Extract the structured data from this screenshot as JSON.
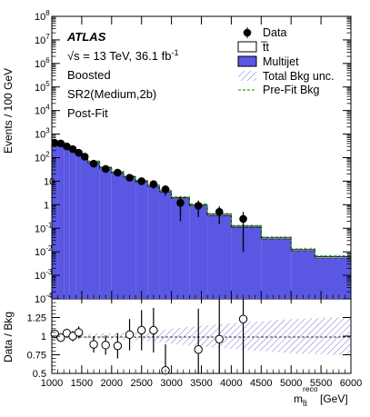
{
  "chart_data": {
    "type": "histogram-with-ratio",
    "annotations": {
      "experiment": "ATLAS",
      "energy_prefix": "√s = 13 TeV, 36.1 fb",
      "lumi_exponent": "-1",
      "selection": "Boosted",
      "region": "SR2(Medium,2b)",
      "fit_state": "Post-Fit"
    },
    "legend": {
      "position": "top-right",
      "entries": [
        {
          "name": "Data",
          "style": "marker",
          "color": "#000000"
        },
        {
          "name": "t̅t",
          "style": "box",
          "color": "#ffffff"
        },
        {
          "name": "Multijet",
          "style": "box",
          "color": "#5a57e2"
        },
        {
          "name": "Total Bkg unc.",
          "style": "hatch",
          "color": "#7f80d8"
        },
        {
          "name": "Pre-Fit Bkg",
          "style": "dashed",
          "color": "#2aa62a"
        }
      ]
    },
    "x_axis": {
      "label": "m",
      "label_sub": "t̅t",
      "label_sup": "reco",
      "label_unit": "[GeV]",
      "range": [
        1000,
        6000
      ],
      "ticks": [
        1000,
        1500,
        2000,
        2500,
        3000,
        3500,
        4000,
        4500,
        5000,
        5500,
        6000
      ]
    },
    "top_panel": {
      "ylabel": "Events / 100 GeV",
      "scale": "log",
      "ylim": [
        0.0001,
        100000000
      ],
      "yticks": [
        {
          "v": 0.0001,
          "base": "10",
          "exp": "-4"
        },
        {
          "v": 0.001,
          "base": "10",
          "exp": "-3"
        },
        {
          "v": 0.01,
          "base": "10",
          "exp": "-2"
        },
        {
          "v": 0.1,
          "base": "10",
          "exp": "-1"
        },
        {
          "v": 1,
          "base": "1",
          "exp": ""
        },
        {
          "v": 10,
          "base": "10",
          "exp": ""
        },
        {
          "v": 100,
          "base": "10",
          "exp": "2"
        },
        {
          "v": 1000,
          "base": "10",
          "exp": "3"
        },
        {
          "v": 10000,
          "base": "10",
          "exp": "4"
        },
        {
          "v": 100000,
          "base": "10",
          "exp": "5"
        },
        {
          "v": 1000000,
          "base": "10",
          "exp": "6"
        },
        {
          "v": 10000000,
          "base": "10",
          "exp": "7"
        },
        {
          "v": 100000000,
          "base": "10",
          "exp": "8"
        }
      ]
    },
    "ratio_panel": {
      "ylabel": "Data / Bkg",
      "ylim": [
        0.5,
        1.5
      ],
      "yticks": [
        0.5,
        0.75,
        1,
        1.25
      ]
    },
    "background_bins": [
      {
        "lo": 1000,
        "hi": 1100,
        "multijet": 380,
        "ttbar": 35
      },
      {
        "lo": 1100,
        "hi": 1200,
        "multijet": 320,
        "ttbar": 30
      },
      {
        "lo": 1200,
        "hi": 1300,
        "multijet": 250,
        "ttbar": 25
      },
      {
        "lo": 1300,
        "hi": 1400,
        "multijet": 190,
        "ttbar": 20
      },
      {
        "lo": 1400,
        "hi": 1500,
        "multijet": 140,
        "ttbar": 15
      },
      {
        "lo": 1500,
        "hi": 1600,
        "multijet": 100,
        "ttbar": 11
      },
      {
        "lo": 1600,
        "hi": 1800,
        "multijet": 60,
        "ttbar": 7
      },
      {
        "lo": 1800,
        "hi": 2000,
        "multijet": 33,
        "ttbar": 4
      },
      {
        "lo": 2000,
        "hi": 2200,
        "multijet": 22,
        "ttbar": 2.5
      },
      {
        "lo": 2200,
        "hi": 2400,
        "multijet": 14,
        "ttbar": 1.5
      },
      {
        "lo": 2400,
        "hi": 2600,
        "multijet": 9,
        "ttbar": 1
      },
      {
        "lo": 2600,
        "hi": 2800,
        "multijet": 6,
        "ttbar": 0.7
      },
      {
        "lo": 2800,
        "hi": 3000,
        "multijet": 3.5,
        "ttbar": 0.4
      },
      {
        "lo": 3000,
        "hi": 3300,
        "multijet": 1.8,
        "ttbar": 0.2
      },
      {
        "lo": 3300,
        "hi": 3600,
        "multijet": 0.9,
        "ttbar": 0.1
      },
      {
        "lo": 3600,
        "hi": 4000,
        "multijet": 0.35,
        "ttbar": 0.04
      },
      {
        "lo": 4000,
        "hi": 4500,
        "multijet": 0.11,
        "ttbar": 0.012
      },
      {
        "lo": 4500,
        "hi": 5000,
        "multijet": 0.035,
        "ttbar": 0.004
      },
      {
        "lo": 5000,
        "hi": 5400,
        "multijet": 0.011,
        "ttbar": 0.0013
      },
      {
        "lo": 5400,
        "hi": 6000,
        "multijet": 0.0055,
        "ttbar": 0.0007
      }
    ],
    "data_points": [
      {
        "x": 1050,
        "y": 420,
        "err": 20
      },
      {
        "x": 1150,
        "y": 400,
        "err": 20
      },
      {
        "x": 1250,
        "y": 300,
        "err": 17
      },
      {
        "x": 1350,
        "y": 230,
        "err": 15
      },
      {
        "x": 1450,
        "y": 160,
        "err": 13
      },
      {
        "x": 1550,
        "y": 110,
        "err": 10
      },
      {
        "x": 1700,
        "y": 55,
        "err": 7.4
      },
      {
        "x": 1900,
        "y": 33,
        "err": 5.7
      },
      {
        "x": 2100,
        "y": 23,
        "err": 4.8
      },
      {
        "x": 2300,
        "y": 14,
        "err": 3.7
      },
      {
        "x": 2500,
        "y": 10,
        "err": 3.2
      },
      {
        "x": 2700,
        "y": 7.5,
        "err": 2.7
      },
      {
        "x": 2900,
        "y": 4.5,
        "err": 2.1
      },
      {
        "x": 3150,
        "y": 1.2,
        "err": 1.0
      },
      {
        "x": 3450,
        "y": 0.9,
        "err": 0.6
      },
      {
        "x": 3800,
        "y": 0.5,
        "err": 0.35
      },
      {
        "x": 4200,
        "y": 0.25,
        "err": 0.24
      }
    ],
    "ratio_points": [
      {
        "x": 1050,
        "y": 1.03,
        "err": 0.05
      },
      {
        "x": 1150,
        "y": 0.98,
        "err": 0.05
      },
      {
        "x": 1250,
        "y": 1.04,
        "err": 0.06
      },
      {
        "x": 1350,
        "y": 1.0,
        "err": 0.07
      },
      {
        "x": 1450,
        "y": 1.05,
        "err": 0.08
      },
      {
        "x": 1700,
        "y": 0.89,
        "err": 0.11
      },
      {
        "x": 1900,
        "y": 0.88,
        "err": 0.13
      },
      {
        "x": 2100,
        "y": 0.87,
        "err": 0.17
      },
      {
        "x": 2300,
        "y": 1.02,
        "err": 0.21
      },
      {
        "x": 2500,
        "y": 1.08,
        "err": 0.27
      },
      {
        "x": 2700,
        "y": 1.08,
        "err": 0.3
      },
      {
        "x": 2900,
        "y": 0.54,
        "err": 0.35
      },
      {
        "x": 3450,
        "y": 0.82,
        "err": 0.55
      },
      {
        "x": 3800,
        "y": 0.96,
        "err": 0.7
      },
      {
        "x": 4200,
        "y": 1.23,
        "err": 1.2
      }
    ],
    "ratio_unc_band": [
      {
        "x": 1000,
        "u": 0.03
      },
      {
        "x": 1500,
        "u": 0.03
      },
      {
        "x": 2000,
        "u": 0.04
      },
      {
        "x": 2500,
        "u": 0.06
      },
      {
        "x": 3000,
        "u": 0.1
      },
      {
        "x": 3500,
        "u": 0.14
      },
      {
        "x": 4000,
        "u": 0.17
      },
      {
        "x": 4500,
        "u": 0.2
      },
      {
        "x": 5000,
        "u": 0.23
      },
      {
        "x": 6000,
        "u": 0.26
      }
    ]
  }
}
